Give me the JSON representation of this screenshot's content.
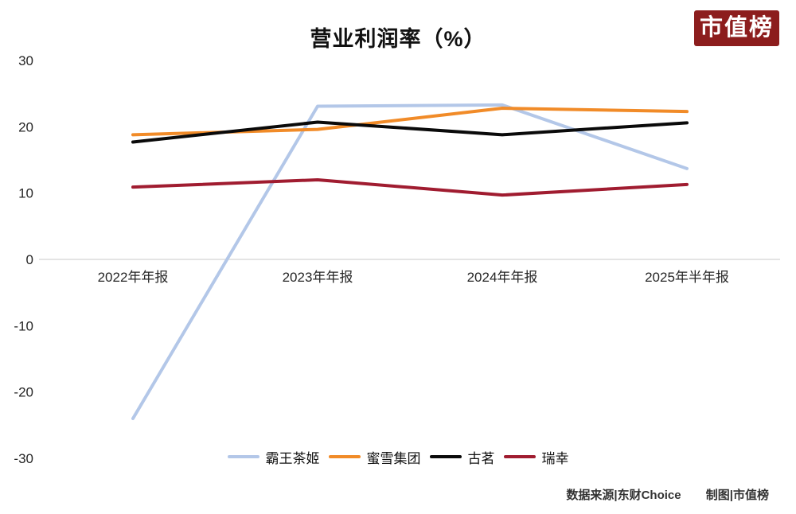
{
  "logo": {
    "text": "市值榜",
    "bg_color": "#8c1d1d",
    "text_color": "#ffffff"
  },
  "footer": {
    "source": "数据来源|东财Choice",
    "credit": "制图|市值榜"
  },
  "axis_colors": {
    "gridline": "#dcdcdc",
    "tick_text": "#262626"
  },
  "chart_data": {
    "type": "line",
    "title": "营业利润率（%）",
    "categories": [
      "2022年年报",
      "2023年年报",
      "2024年年报",
      "2025年半年报"
    ],
    "series": [
      {
        "name": "霸王茶姬",
        "color": "#b3c7e8",
        "values": [
          -24.0,
          23.1,
          23.3,
          13.7
        ]
      },
      {
        "name": "蜜雪集团",
        "color": "#f18b28",
        "values": [
          18.8,
          19.6,
          22.8,
          22.3
        ]
      },
      {
        "name": "古茗",
        "color": "#0a0a0a",
        "values": [
          17.7,
          20.7,
          18.8,
          20.6
        ]
      },
      {
        "name": "瑞幸",
        "color": "#a01c30",
        "values": [
          10.9,
          12.0,
          9.7,
          11.3
        ]
      }
    ],
    "ylim": [
      -30,
      30
    ],
    "yticks": [
      30,
      20,
      10,
      0,
      -10,
      -20,
      -30
    ],
    "grid": "zero-line-only",
    "legend_position": "bottom-center",
    "xlabel": "",
    "ylabel": ""
  }
}
